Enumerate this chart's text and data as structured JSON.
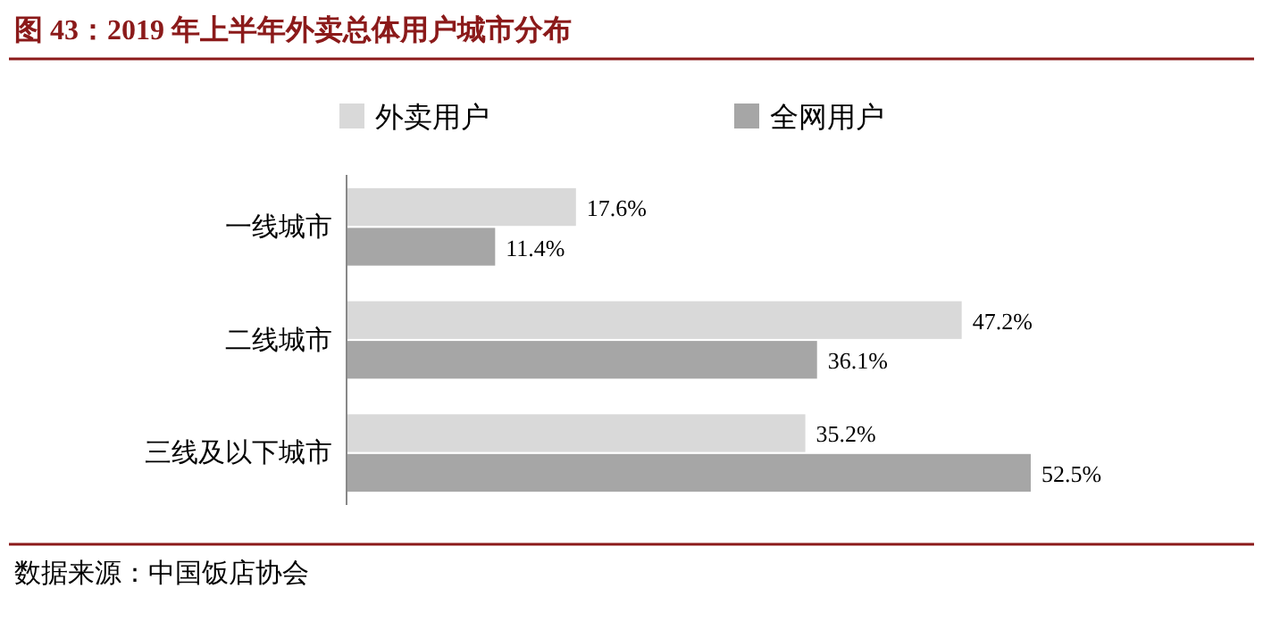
{
  "chart_data": {
    "type": "bar",
    "orientation": "horizontal",
    "title": "图 43：2019 年上半年外卖总体用户城市分布",
    "categories": [
      "一线城市",
      "二线城市",
      "三线及以下城市"
    ],
    "series": [
      {
        "name": "外卖用户",
        "color": "#d9d9d9",
        "values": [
          17.6,
          47.2,
          35.2
        ],
        "value_labels": [
          "17.6%",
          "47.2%",
          "35.2%"
        ]
      },
      {
        "name": "全网用户",
        "color": "#a6a6a6",
        "values": [
          11.4,
          36.1,
          52.5
        ],
        "value_labels": [
          "11.4%",
          "36.1%",
          "52.5%"
        ]
      }
    ],
    "legend": "top",
    "annotations": [
      "数据来源：中国饭店协会"
    ]
  }
}
